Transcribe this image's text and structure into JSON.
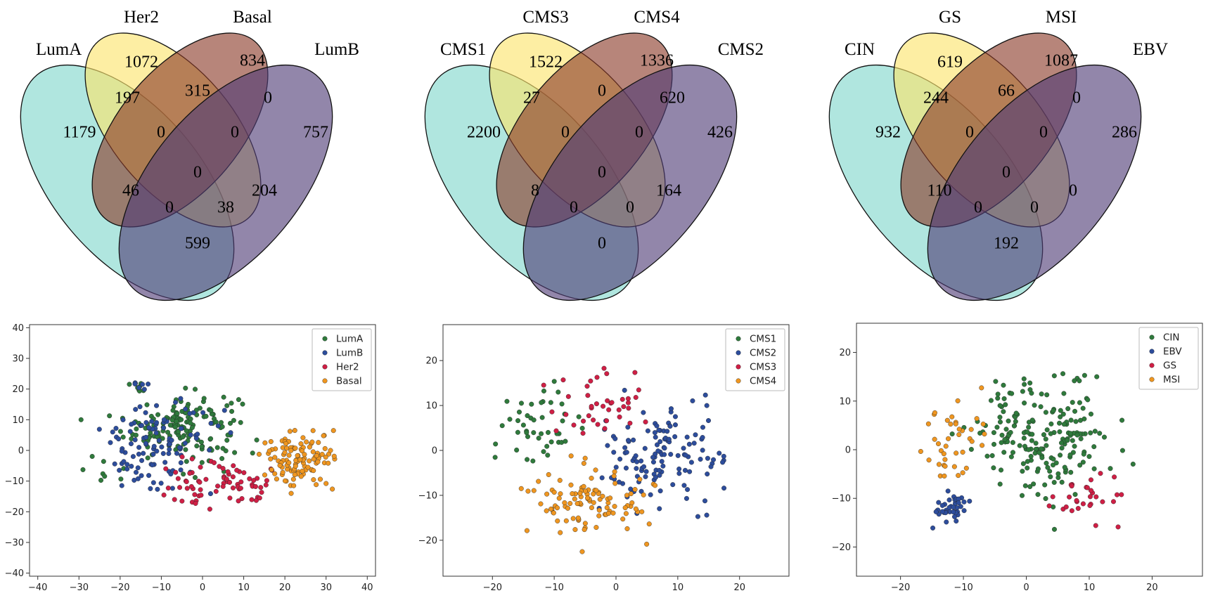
{
  "venn": [
    {
      "sets": [
        "LumA",
        "Her2",
        "Basal",
        "LumB"
      ],
      "regions": {
        "only_1": "1179",
        "only_2": "1072",
        "only_3": "834",
        "only_4": "757",
        "r12": "197",
        "r23": "315",
        "r34": "0",
        "r13": "46",
        "r24": "204",
        "r14": "599",
        "r123": "0",
        "r234": "0",
        "r134": "0",
        "r124": "38",
        "r1234": "0"
      },
      "colors": [
        "#7fd6cb",
        "#fce46a",
        "#8a3a28",
        "#4f3c76"
      ]
    },
    {
      "sets": [
        "CMS1",
        "CMS3",
        "CMS4",
        "CMS2"
      ],
      "regions": {
        "only_1": "2200",
        "only_2": "1522",
        "only_3": "1336",
        "only_4": "426",
        "r12": "27",
        "r23": "0",
        "r34": "620",
        "r13": "8",
        "r24": "164",
        "r14": "0",
        "r123": "0",
        "r234": "0",
        "r134": "0",
        "r124": "0",
        "r1234": "0"
      },
      "colors": [
        "#7fd6cb",
        "#fce46a",
        "#8a3a28",
        "#4f3c76"
      ]
    },
    {
      "sets": [
        "CIN",
        "GS",
        "MSI",
        "EBV"
      ],
      "regions": {
        "only_1": "932",
        "only_2": "619",
        "only_3": "1087",
        "only_4": "286",
        "r12": "244",
        "r23": "66",
        "r34": "0",
        "r13": "110",
        "r24": "0",
        "r14": "192",
        "r123": "0",
        "r234": "0",
        "r134": "0",
        "r124": "0",
        "r1234": "0"
      },
      "colors": [
        "#7fd6cb",
        "#fce46a",
        "#8a3a28",
        "#4f3c76"
      ]
    }
  ],
  "chart_data": [
    {
      "type": "scatter",
      "title": "",
      "xlabel": "",
      "ylabel": "",
      "xlim": [
        -42,
        42
      ],
      "ylim": [
        -41,
        41
      ],
      "xticks": [
        -40,
        -30,
        -20,
        -10,
        0,
        10,
        20,
        30,
        40
      ],
      "yticks": [
        -40,
        -30,
        -20,
        -10,
        0,
        10,
        20,
        30,
        40
      ],
      "legend_position": "top-right",
      "series": [
        {
          "name": "LumA",
          "color": "#2f7a3c",
          "clusters": [
            {
              "cx": -5,
              "cy": 8,
              "sx": 7,
              "sy": 5.5,
              "n": 150
            },
            {
              "cx": -16,
              "cy": 20,
              "sx": 1.5,
              "sy": 1,
              "n": 8
            },
            {
              "cx": -24,
              "cy": -6,
              "sx": 3,
              "sy": 3,
              "n": 8
            }
          ]
        },
        {
          "name": "LumB",
          "color": "#2d4d9c",
          "clusters": [
            {
              "cx": -11,
              "cy": 2,
              "sx": 7,
              "sy": 7,
              "n": 110
            },
            {
              "cx": -15,
              "cy": 21,
              "sx": 1.5,
              "sy": 1,
              "n": 6
            }
          ]
        },
        {
          "name": "Her2",
          "color": "#cf1f45",
          "clusters": [
            {
              "cx": 4,
              "cy": -11,
              "sx": 7,
              "sy": 4,
              "n": 75
            }
          ]
        },
        {
          "name": "Basal",
          "color": "#ef9620",
          "clusters": [
            {
              "cx": 23,
              "cy": -3,
              "sx": 4.2,
              "sy": 4.5,
              "n": 115
            }
          ]
        }
      ]
    },
    {
      "type": "scatter",
      "title": "",
      "xlabel": "",
      "ylabel": "",
      "xlim": [
        -28,
        28
      ],
      "ylim": [
        -28,
        28
      ],
      "xticks": [
        -20,
        -10,
        0,
        10,
        20
      ],
      "yticks": [
        -20,
        -10,
        0,
        10,
        20
      ],
      "legend_position": "top-right",
      "series": [
        {
          "name": "CMS1",
          "color": "#2f7a3c",
          "clusters": [
            {
              "cx": -12,
              "cy": 6,
              "sx": 3.5,
              "sy": 4,
              "n": 45
            }
          ]
        },
        {
          "name": "CMS2",
          "color": "#2d4d9c",
          "clusters": [
            {
              "cx": 7,
              "cy": -1,
              "sx": 5,
              "sy": 6,
              "n": 130
            }
          ]
        },
        {
          "name": "CMS3",
          "color": "#cf1f45",
          "clusters": [
            {
              "cx": -2,
              "cy": 9,
              "sx": 4,
              "sy": 4,
              "n": 40
            }
          ]
        },
        {
          "name": "CMS4",
          "color": "#ef9620",
          "clusters": [
            {
              "cx": -5,
              "cy": -11,
              "sx": 5,
              "sy": 3.5,
              "n": 105
            }
          ]
        }
      ]
    },
    {
      "type": "scatter",
      "title": "",
      "xlabel": "",
      "ylabel": "",
      "xlim": [
        -27,
        28
      ],
      "ylim": [
        -26,
        26
      ],
      "xticks": [
        -20,
        -10,
        0,
        10,
        20
      ],
      "yticks": [
        -20,
        -10,
        0,
        10,
        20
      ],
      "legend_position": "top-right",
      "series": [
        {
          "name": "CIN",
          "color": "#2f7a3c",
          "clusters": [
            {
              "cx": 3,
              "cy": 3,
              "sx": 5.5,
              "sy": 6,
              "n": 200
            }
          ]
        },
        {
          "name": "EBV",
          "color": "#2d4d9c",
          "clusters": [
            {
              "cx": -12,
              "cy": -12,
              "sx": 1.5,
              "sy": 1.5,
              "n": 40
            }
          ]
        },
        {
          "name": "GS",
          "color": "#cf1f45",
          "clusters": [
            {
              "cx": 9,
              "cy": -10,
              "sx": 3,
              "sy": 2.5,
              "n": 30
            }
          ]
        },
        {
          "name": "MSI",
          "color": "#ef9620",
          "clusters": [
            {
              "cx": -11,
              "cy": 2,
              "sx": 2.5,
              "sy": 5,
              "n": 40
            }
          ]
        }
      ]
    }
  ]
}
